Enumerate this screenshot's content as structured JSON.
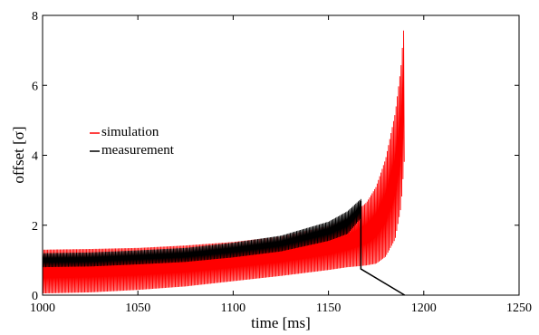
{
  "chart_data": {
    "type": "line",
    "title": "",
    "xlabel": "time [ms]",
    "ylabel": "offset [σ]",
    "xlim": [
      1000,
      1250
    ],
    "ylim": [
      0,
      8
    ],
    "xticks": [
      "1000",
      "1050",
      "1100",
      "1150",
      "1200",
      "1250"
    ],
    "yticks": [
      "0",
      "2",
      "4",
      "6",
      "8"
    ],
    "grid": false,
    "legend_position": "left",
    "series": [
      {
        "name": "simulation",
        "color": "#ff0000",
        "style": "oscillating envelope",
        "x": [
          1000,
          1025,
          1050,
          1075,
          1100,
          1125,
          1150,
          1160,
          1170,
          1175,
          1180,
          1185,
          1188,
          1190
        ],
        "upper": [
          1.3,
          1.32,
          1.35,
          1.42,
          1.52,
          1.68,
          1.98,
          2.2,
          2.65,
          3.1,
          3.9,
          5.2,
          6.5,
          8.0
        ],
        "lower": [
          0.05,
          0.08,
          0.15,
          0.25,
          0.4,
          0.55,
          0.72,
          0.8,
          0.85,
          0.9,
          1.1,
          1.6,
          2.5,
          4.0
        ]
      },
      {
        "name": "measurement",
        "color": "#000000",
        "style": "oscillating envelope then decay",
        "x": [
          1000,
          1025,
          1050,
          1075,
          1100,
          1125,
          1150,
          1160,
          1167
        ],
        "upper": [
          1.2,
          1.22,
          1.28,
          1.35,
          1.5,
          1.7,
          2.1,
          2.4,
          2.75
        ],
        "lower": [
          0.8,
          0.82,
          0.88,
          0.95,
          1.08,
          1.25,
          1.55,
          1.75,
          2.2
        ],
        "tail_x": [
          1167,
          1167,
          1190
        ],
        "tail_y": [
          2.7,
          0.75,
          0.0
        ]
      }
    ]
  }
}
